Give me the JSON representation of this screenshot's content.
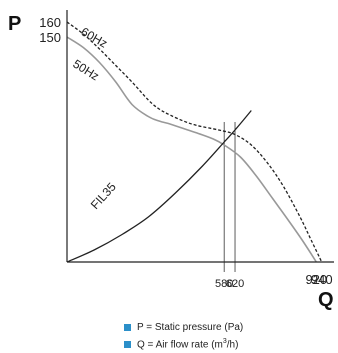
{
  "chart_data": {
    "type": "line",
    "y_axis_letter": "P",
    "x_axis_letter": "Q",
    "xlim": [
      0,
      1000
    ],
    "ylim": [
      0,
      170
    ],
    "y_ticks": [
      {
        "value": 160,
        "label": "160"
      },
      {
        "value": 150,
        "label": "150"
      }
    ],
    "x_ticks": [
      {
        "value": 580,
        "label": "580"
      },
      {
        "value": 620,
        "label": "620"
      },
      {
        "value": 920,
        "label": "920"
      },
      {
        "value": 940,
        "label": "940"
      }
    ],
    "series": [
      {
        "name": "60Hz",
        "style": "dashed",
        "color": "#222222",
        "x": [
          0,
          60,
          120,
          180,
          240,
          300,
          340,
          380,
          430,
          480,
          560,
          620,
          680,
          740,
          800,
          860,
          900,
          940
        ],
        "y": [
          160,
          152,
          142,
          131,
          120,
          108,
          102,
          98,
          94,
          91,
          88,
          85,
          78,
          66,
          50,
          30,
          15,
          0
        ]
      },
      {
        "name": "50Hz",
        "style": "solid",
        "color": "#999999",
        "x": [
          0,
          60,
          120,
          180,
          240,
          300,
          340,
          380,
          430,
          480,
          540,
          580,
          640,
          700,
          760,
          820,
          870,
          920
        ],
        "y": [
          150,
          143,
          133,
          120,
          105,
          97,
          94,
          92,
          89,
          86,
          82,
          78,
          70,
          57,
          42,
          27,
          14,
          0
        ]
      },
      {
        "name": "FIL35",
        "style": "solid",
        "color": "#222222",
        "x": [
          0,
          100,
          200,
          300,
          400,
          500,
          580,
          620,
          680
        ],
        "y": [
          0,
          8,
          18,
          30,
          46,
          64,
          80,
          88,
          101
        ]
      }
    ],
    "vertical_lines": [
      580,
      620
    ],
    "legend": [
      {
        "text": "P = Static pressure (Pa)"
      },
      {
        "text": "Q = Air flow rate (m",
        "sup": "3",
        "after": "/h)"
      }
    ]
  }
}
